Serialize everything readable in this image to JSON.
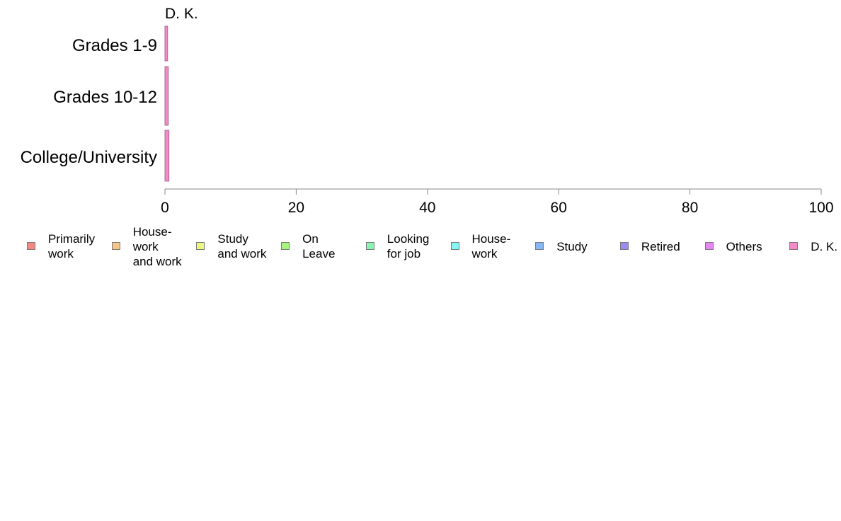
{
  "chart_data": {
    "type": "bar",
    "orientation": "horizontal",
    "stacked": true,
    "title": "D. K.",
    "categories": [
      "Grades 1-9",
      "Grades 10-12",
      "College/University"
    ],
    "series": [
      {
        "name": "Primarily\nwork",
        "color": "#f28a83",
        "values": [
          0,
          0,
          0
        ]
      },
      {
        "name": "House-\nwork\nand work",
        "color": "#f7c687",
        "values": [
          0,
          0,
          0
        ]
      },
      {
        "name": "Study\nand work",
        "color": "#ecf780",
        "values": [
          0,
          0,
          0
        ]
      },
      {
        "name": "On\nLeave",
        "color": "#a6f57e",
        "values": [
          0,
          0,
          0
        ]
      },
      {
        "name": "Looking\nfor job",
        "color": "#88f5b0",
        "values": [
          0,
          0,
          0
        ]
      },
      {
        "name": "House-\nwork",
        "color": "#86f7f5",
        "values": [
          0,
          0,
          0
        ]
      },
      {
        "name": "Study",
        "color": "#86b8f7",
        "values": [
          0,
          0,
          0
        ]
      },
      {
        "name": "Retired",
        "color": "#9a8cf2",
        "values": [
          0,
          0,
          0
        ]
      },
      {
        "name": "Others",
        "color": "#e686f2",
        "values": [
          0,
          0,
          0
        ]
      },
      {
        "name": "D. K.",
        "color": "#f58ac8",
        "values": [
          0.2,
          0.3,
          0.4
        ]
      }
    ],
    "xlim": [
      0,
      100
    ],
    "xticks": [
      "0",
      "20",
      "40",
      "60",
      "80",
      "100"
    ],
    "legend_position": "bottom",
    "grid": false
  }
}
